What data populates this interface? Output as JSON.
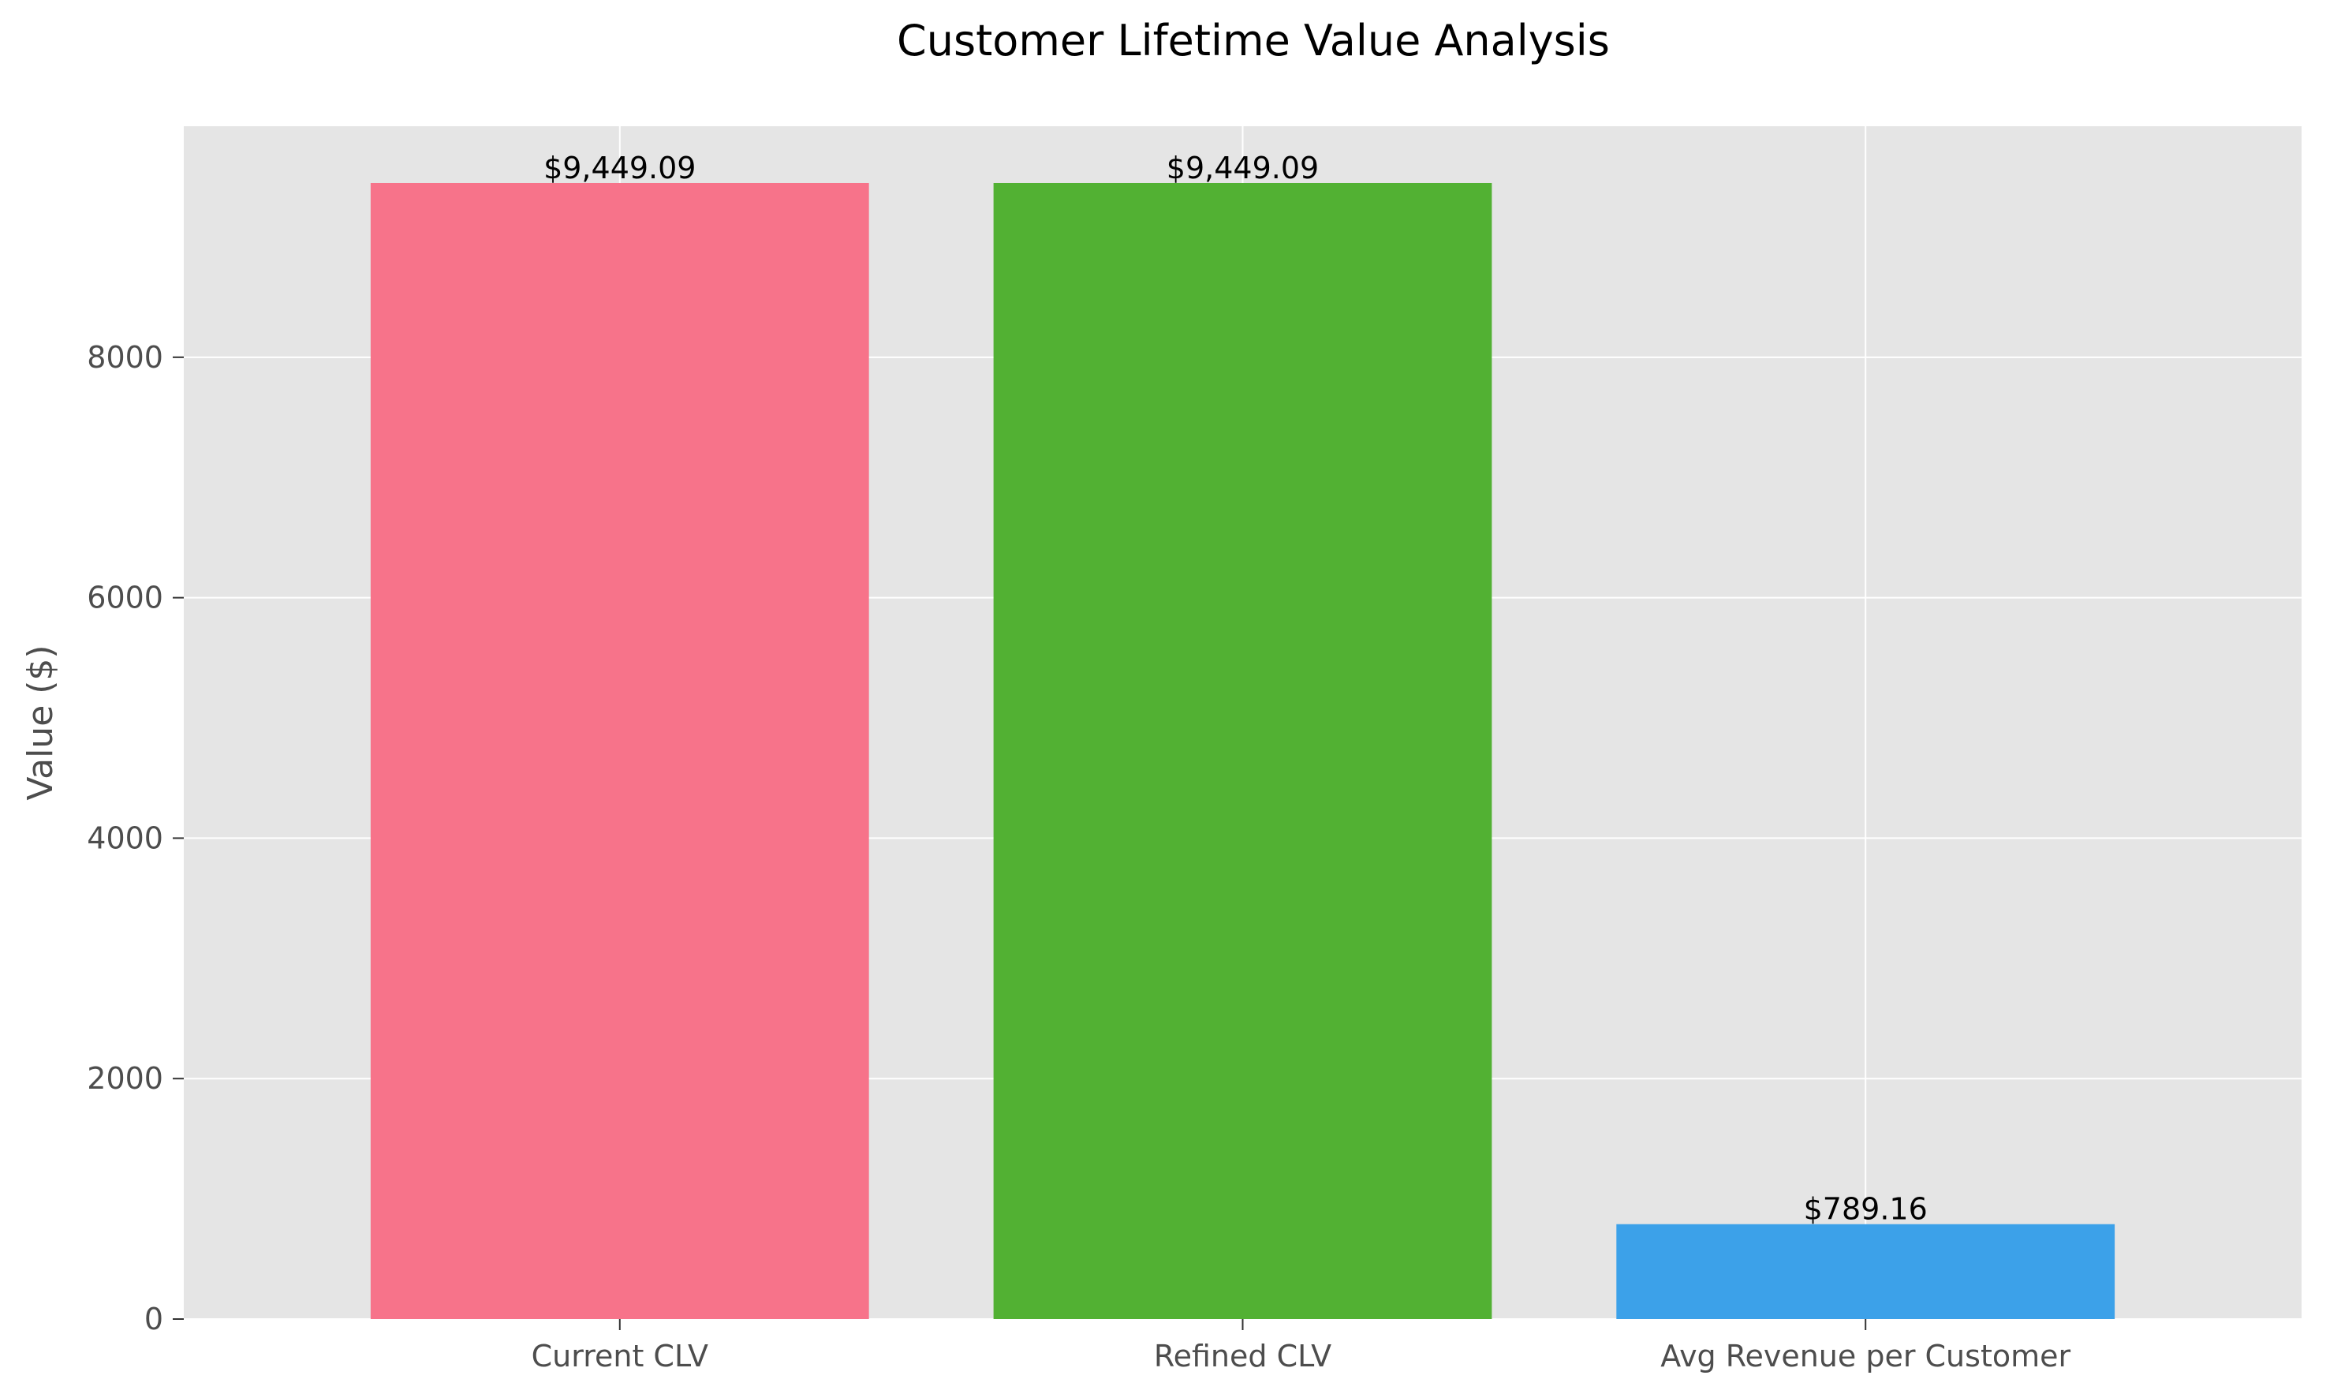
{
  "chart_data": {
    "type": "bar",
    "title": "Customer Lifetime Value Analysis",
    "xlabel": "",
    "ylabel": "Value ($)",
    "categories": [
      "Current CLV",
      "Refined CLV",
      "Avg Revenue per Customer"
    ],
    "values": [
      9449.09,
      9449.09,
      789.16
    ],
    "value_labels": [
      "$9,449.09",
      "$9,449.09",
      "$789.16"
    ],
    "colors": [
      "#f7738a",
      "#52b133",
      "#3ca1e9"
    ],
    "ylim": [
      0,
      9921.5
    ],
    "yticks": [
      0,
      2000,
      4000,
      6000,
      8000
    ],
    "grid": true,
    "background_color": "#e5e5e5",
    "grid_color": "#ffffff"
  }
}
